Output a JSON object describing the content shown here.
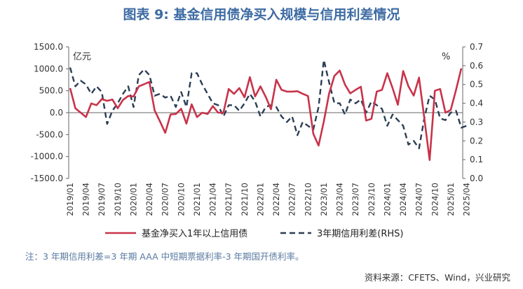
{
  "chart_data": {
    "type": "line",
    "title": "图表 9:  基金信用债净买入规模与信用利差情况",
    "left_axis_unit": "亿元",
    "right_axis_unit": "%",
    "ylim_left": [
      -1500,
      1500
    ],
    "yticks_left": [
      "1500.0",
      "1000.0",
      "500.0",
      "0.0",
      "-500.0",
      "-1000.0",
      "-1500.0"
    ],
    "ylim_right": [
      0.0,
      0.7
    ],
    "yticks_right": [
      "0.7",
      "0.6",
      "0.5",
      "0.4",
      "0.3",
      "0.2",
      "0.1",
      "0.0"
    ],
    "x_tick_labels": [
      "2019/01",
      "2019/04",
      "2019/07",
      "2019/10",
      "2020/01",
      "2020/04",
      "2020/07",
      "2020/10",
      "2021/01",
      "2021/04",
      "2021/07",
      "2021/10",
      "2022/01",
      "2022/04",
      "2022/07",
      "2022/10",
      "2023/01",
      "2023/04",
      "2023/07",
      "2023/10",
      "2024/01",
      "2024/04",
      "2024/07",
      "2024/10",
      "2025/01",
      "2025/04"
    ],
    "legend_position": "bottom",
    "grid": false,
    "series": [
      {
        "name": "基金净买入1年以上信用债",
        "axis": "left",
        "color": "#c8334a",
        "style": "solid",
        "values": [
          560,
          100,
          0,
          -100,
          210,
          170,
          310,
          270,
          300,
          100,
          290,
          380,
          370,
          600,
          650,
          700,
          50,
          -200,
          -460,
          -40,
          -30,
          90,
          -250,
          190,
          -100,
          0,
          -30,
          150,
          0,
          0,
          540,
          430,
          560,
          350,
          810,
          370,
          600,
          360,
          80,
          750,
          520,
          480,
          480,
          490,
          430,
          380,
          -480,
          -750,
          -200,
          440,
          840,
          960,
          640,
          440,
          520,
          590,
          -180,
          -140,
          480,
          520,
          900,
          560,
          180,
          950,
          600,
          390,
          800,
          -120,
          -1080,
          500,
          540,
          0,
          60,
          520,
          1010
        ]
      },
      {
        "name": "3年期信用利差(RHS)",
        "axis": "right",
        "color": "#2b3e55",
        "style": "dashed",
        "values": [
          0.59,
          0.49,
          0.52,
          0.5,
          0.45,
          0.49,
          0.46,
          0.29,
          0.36,
          0.4,
          0.45,
          0.49,
          0.38,
          0.55,
          0.58,
          0.55,
          0.44,
          0.45,
          0.43,
          0.44,
          0.38,
          0.46,
          0.38,
          0.56,
          0.56,
          0.5,
          0.45,
          0.4,
          0.39,
          0.33,
          0.39,
          0.39,
          0.36,
          0.4,
          0.45,
          0.41,
          0.33,
          0.38,
          0.39,
          0.38,
          0.33,
          0.3,
          0.33,
          0.23,
          0.3,
          0.28,
          0.26,
          0.38,
          0.63,
          0.51,
          0.4,
          0.4,
          0.34,
          0.42,
          0.4,
          0.42,
          0.35,
          0.41,
          0.39,
          0.37,
          0.28,
          0.34,
          0.31,
          0.28,
          0.18,
          0.2,
          0.16,
          0.32,
          0.44,
          0.42,
          0.32,
          0.31,
          0.35,
          0.36,
          0.27,
          0.28
        ]
      }
    ]
  },
  "note": "注：3 年期信用利差=3 年期 AAA 中短期票据利率-3 年期国开债利率。",
  "source": "资料来源：CFETS、Wind，兴业研究"
}
